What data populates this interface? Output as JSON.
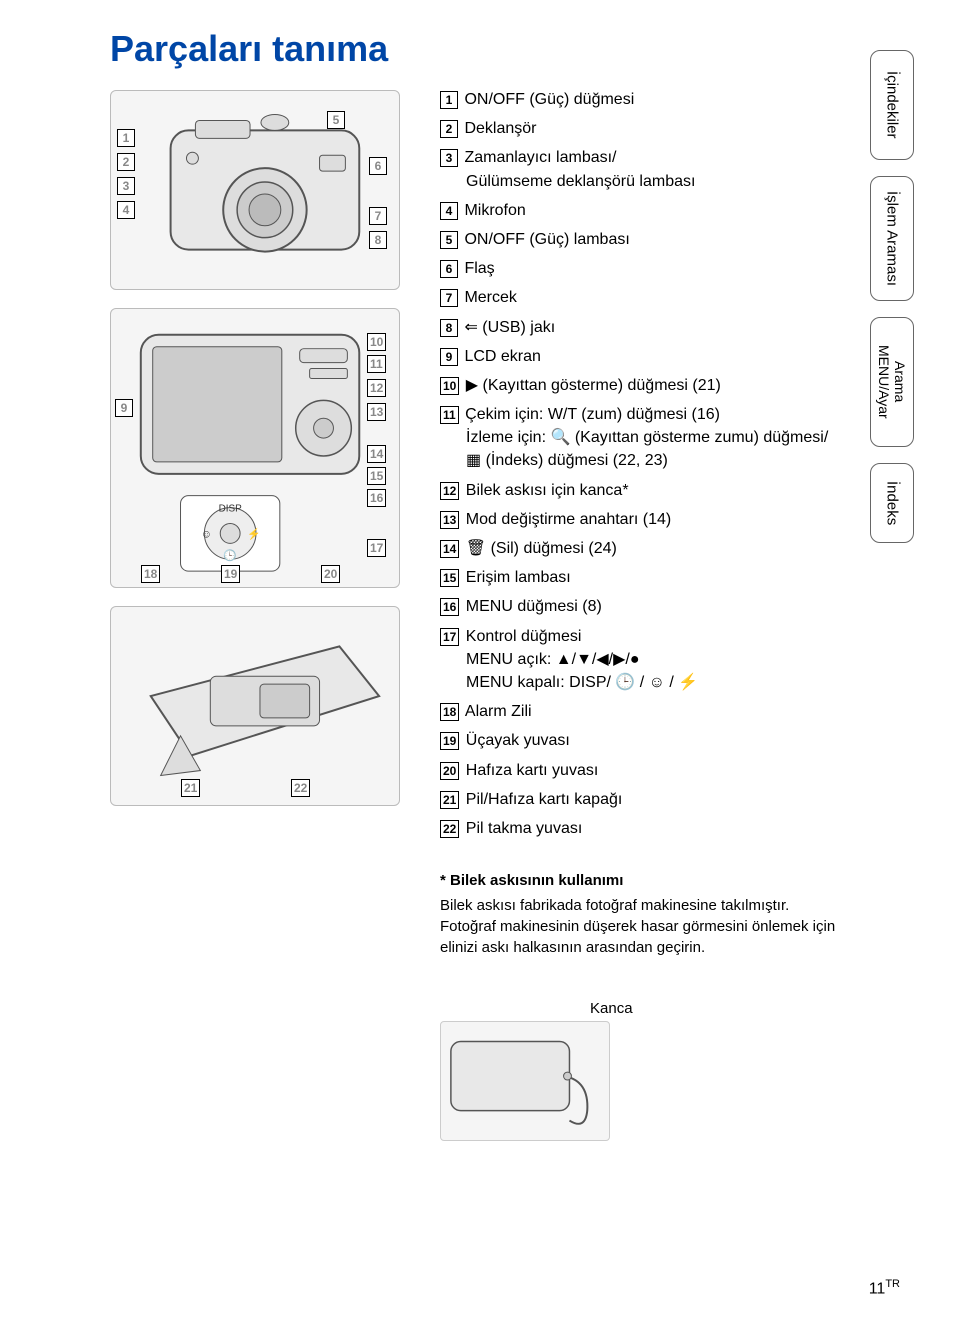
{
  "title": "Parçaları tanıma",
  "title_color": "#0046a6",
  "parts": [
    {
      "num": "1",
      "label": "ON/OFF (Güç) düğmesi"
    },
    {
      "num": "2",
      "label": "Deklanşör"
    },
    {
      "num": "3",
      "label": "Zamanlayıcı lambası/",
      "sub": "Gülümseme deklanşörü lambası"
    },
    {
      "num": "4",
      "label": "Mikrofon"
    },
    {
      "num": "5",
      "label": "ON/OFF (Güç) lambası"
    },
    {
      "num": "6",
      "label": "Flaş"
    },
    {
      "num": "7",
      "label": "Mercek"
    },
    {
      "num": "8",
      "icon": "⇐",
      "label": "(USB) jakı"
    },
    {
      "num": "9",
      "label": "LCD ekran"
    },
    {
      "num": "10",
      "icon": "▶",
      "label": "(Kayıttan gösterme) düğmesi (21)"
    },
    {
      "num": "11",
      "label": "Çekim için: W/T (zum) düğmesi (16)",
      "sub": "İzleme için: 🔍 (Kayıttan gösterme zumu) düğmesi/ ▦ (İndeks) düğmesi (22, 23)"
    },
    {
      "num": "12",
      "label": "Bilek askısı için kanca*"
    },
    {
      "num": "13",
      "label": "Mod değiştirme anahtarı (14)"
    },
    {
      "num": "14",
      "icon": "🗑",
      "label": "(Sil) düğmesi (24)"
    },
    {
      "num": "15",
      "label": "Erişim lambası"
    },
    {
      "num": "16",
      "label": "MENU düğmesi (8)"
    },
    {
      "num": "17",
      "label": "Kontrol düğmesi",
      "sub": "MENU açık: ▲/▼/◀/▶/●\nMENU kapalı: DISP/ 🕒 / ☺ / ⚡"
    },
    {
      "num": "18",
      "label": "Alarm Zili"
    },
    {
      "num": "19",
      "label": "Üçayak yuvası"
    },
    {
      "num": "20",
      "label": "Hafıza kartı yuvası"
    },
    {
      "num": "21",
      "label": "Pil/Hafıza kartı kapağı"
    },
    {
      "num": "22",
      "label": "Pil takma yuvası"
    }
  ],
  "note": {
    "title": "* Bilek askısının kullanımı",
    "body": "Bilek askısı fabrikada fotoğraf makinesine takılmıştır. Fotoğraf makinesinin düşerek hasar görmesini önlemek için elinizi askı halkasının arasından geçirin."
  },
  "kanca_label": "Kanca",
  "tabs": [
    "İçindekiler",
    "İşlem Araması",
    "MENU/Ayar Arama",
    "İndeks"
  ],
  "page_number": "11",
  "page_suffix": "TR",
  "diagram_badges_top": [
    "1",
    "2",
    "3",
    "4",
    "5",
    "6",
    "7",
    "8"
  ],
  "diagram_badges_mid": [
    "9",
    "10",
    "11",
    "12",
    "13",
    "14",
    "15",
    "16",
    "17",
    "18",
    "19",
    "20"
  ],
  "diagram_badges_bot": [
    "21",
    "22"
  ],
  "colors": {
    "title": "#0046a6",
    "text": "#000000",
    "bg": "#ffffff",
    "diagram_bg": "#f5f5f5",
    "diagram_border": "#bbbbbb"
  },
  "fonts": {
    "title_size_pt": 27,
    "body_size_pt": 12,
    "tab_size_pt": 11
  }
}
